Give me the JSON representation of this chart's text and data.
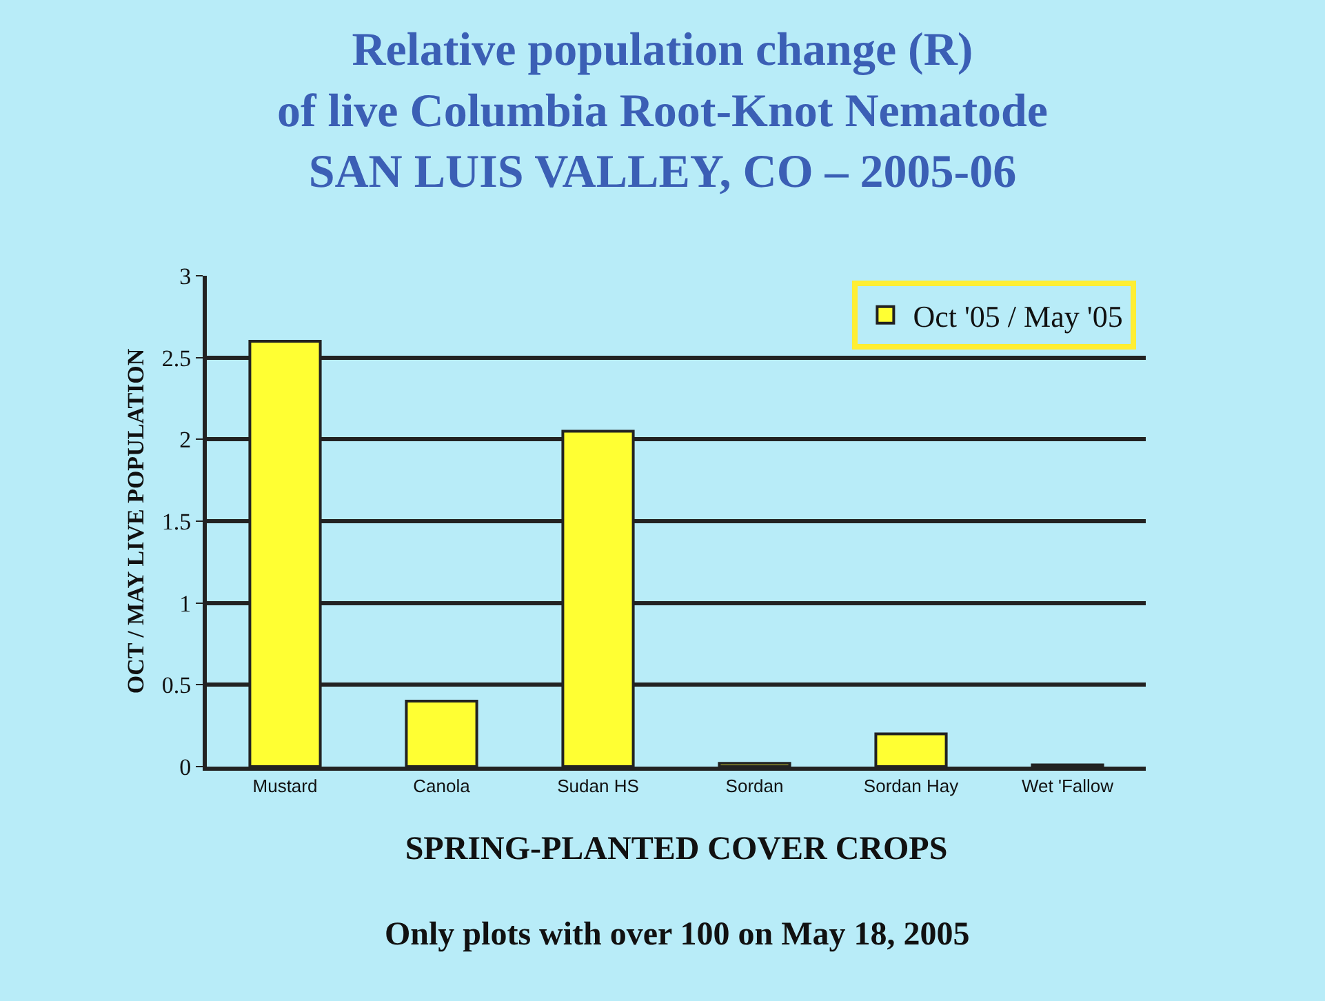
{
  "chart_data": {
    "type": "bar",
    "title": "Relative population change (R)\nof live Columbia Root-Knot Nematode\nSAN LUIS VALLEY, CO – 2005-06",
    "xlabel": "SPRING-PLANTED COVER CROPS",
    "ylabel": "OCT / MAY LIVE POPULATION",
    "annotations": [
      "Only plots with over 100 on May 18, 2005"
    ],
    "categories": [
      "Mustard",
      "Canola",
      "Sudan HS",
      "Sordan",
      "Sordan Hay",
      "Wet 'Fallow"
    ],
    "series": [
      {
        "name": "Oct '05 / May '05",
        "color": "#ffff33",
        "values": [
          2.6,
          0.4,
          2.05,
          0.02,
          0.2,
          0.01
        ]
      }
    ],
    "ylim": [
      0,
      3
    ],
    "yticks": [
      0,
      0.5,
      1,
      1.5,
      2,
      2.5,
      3
    ],
    "grid": "y",
    "legend": "top right"
  }
}
